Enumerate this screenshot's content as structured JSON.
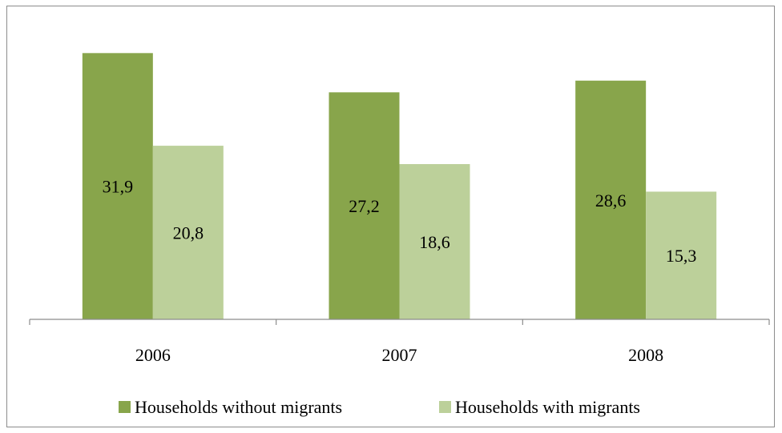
{
  "chart_data": {
    "type": "bar",
    "title": "",
    "xlabel": "",
    "ylabel": "",
    "categories": [
      "2006",
      "2007",
      "2008"
    ],
    "series": [
      {
        "name": "Households without migrants",
        "values": [
          31.9,
          27.2,
          28.6
        ],
        "labels": [
          "31,9",
          "27,2",
          "28,6"
        ],
        "color": "#88a54b"
      },
      {
        "name": "Households with migrants",
        "values": [
          20.8,
          18.6,
          15.3
        ],
        "labels": [
          "20,8",
          "18,6",
          "15,3"
        ],
        "color": "#bcd09a"
      }
    ],
    "ylim": [
      0,
      35
    ],
    "grid": false,
    "legend_position": "bottom"
  }
}
